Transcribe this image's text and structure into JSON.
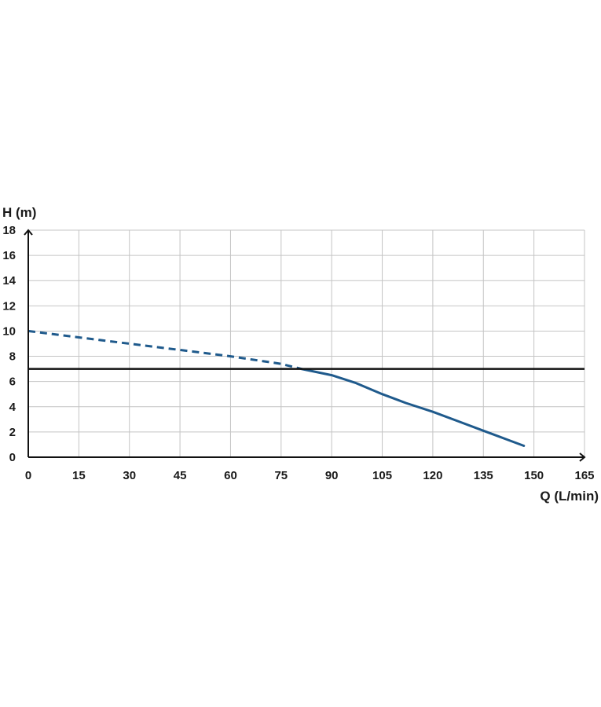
{
  "chart_data": {
    "type": "line",
    "xlabel": "Q (L/min)",
    "ylabel": "H (m)",
    "xlim": [
      0,
      165
    ],
    "ylim": [
      0,
      18
    ],
    "x_ticks": [
      0,
      15,
      30,
      45,
      60,
      75,
      90,
      105,
      120,
      135,
      150,
      165
    ],
    "y_ticks": [
      0,
      2,
      4,
      6,
      8,
      10,
      12,
      14,
      16,
      18
    ],
    "grid": true,
    "series": [
      {
        "style": "dashed",
        "color": "#1f5a8c",
        "x": [
          0,
          15,
          30,
          45,
          60,
          75,
          81
        ],
        "y": [
          10.0,
          9.5,
          9.0,
          8.5,
          8.0,
          7.4,
          7.0
        ]
      },
      {
        "style": "solid",
        "color": "#1f5a8c",
        "x": [
          81,
          90,
          97,
          105,
          112,
          120,
          128,
          135,
          142,
          147
        ],
        "y": [
          7.0,
          6.5,
          5.9,
          5.0,
          4.3,
          3.6,
          2.8,
          2.1,
          1.4,
          0.9
        ]
      }
    ],
    "reference_line": {
      "y": 7,
      "color": "#111111"
    }
  }
}
